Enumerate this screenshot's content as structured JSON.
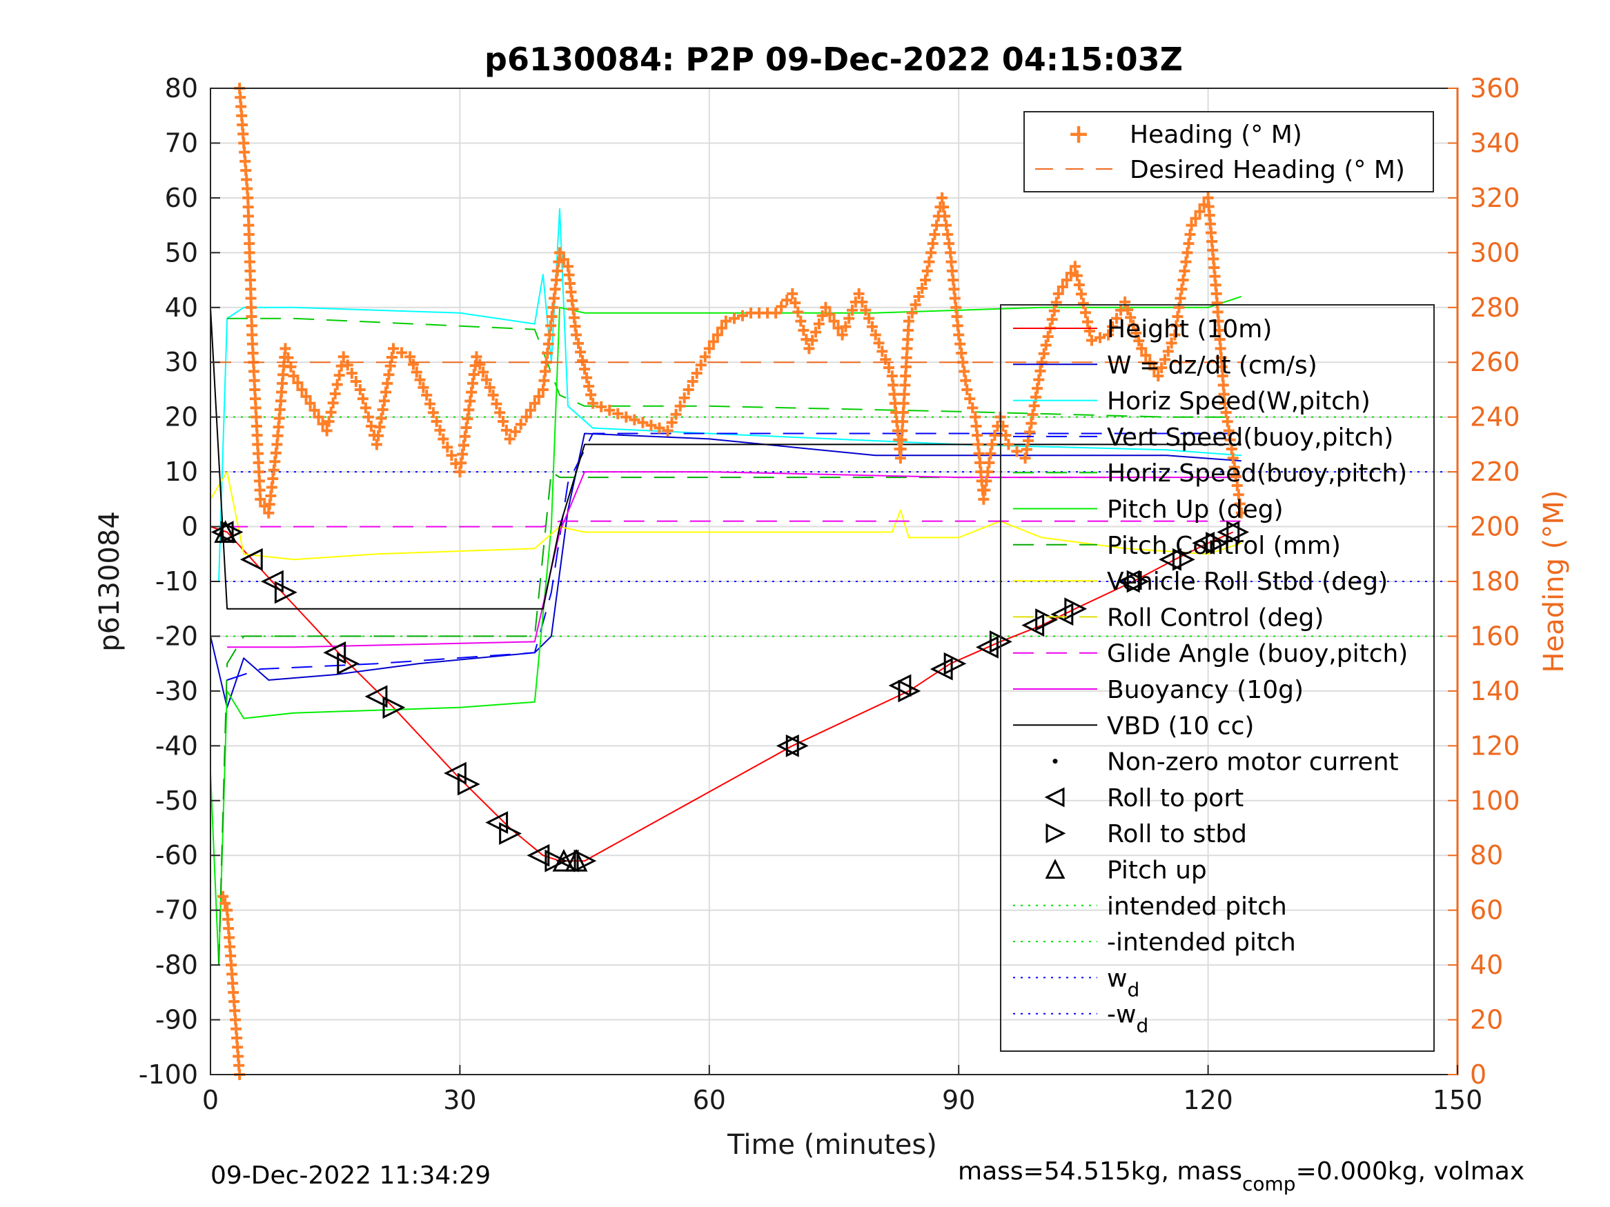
{
  "chart_data": {
    "type": "line",
    "title": "p6130084: P2P 09-Dec-2022 04:15:03Z",
    "xlabel": "Time (minutes)",
    "ylabel": "p6130084",
    "ylabel_right": "Heading (°M)",
    "xlim": [
      0,
      150
    ],
    "ylim": [
      -100,
      80
    ],
    "ylim_right": [
      0,
      360
    ],
    "xticks": [
      "0",
      "30",
      "60",
      "90",
      "120",
      "150"
    ],
    "yticks": [
      "80",
      "70",
      "60",
      "50",
      "40",
      "30",
      "20",
      "10",
      "0",
      "-10",
      "-20",
      "-30",
      "-40",
      "-50",
      "-60",
      "-70",
      "-80",
      "-90",
      "-100"
    ],
    "yticks_right": [
      "360",
      "340",
      "320",
      "300",
      "280",
      "260",
      "240",
      "220",
      "200",
      "180",
      "160",
      "140",
      "120",
      "100",
      "80",
      "60",
      "40",
      "20",
      "0"
    ],
    "grid": true,
    "legend_heading": {
      "placement": "top-right",
      "entries": [
        "Heading (° M)",
        "Desired Heading (° M)"
      ]
    },
    "legend_main": {
      "placement": "right",
      "entries": [
        "Height (10m)",
        "W = dz/dt (cm/s)",
        "Horiz Speed(W,pitch)",
        "Vert Speed(buoy,pitch)",
        "Horiz Speed(buoy,pitch)",
        "Pitch Up (deg)",
        "Pitch Control (mm)",
        "Vehicle Roll Stbd (deg)",
        "Roll Control (deg)",
        "Glide Angle (buoy,pitch)",
        "Buoyancy (10g)",
        "VBD (10 cc)",
        "Non-zero motor current",
        "Roll to port",
        "Roll to stbd",
        "Pitch up",
        "intended pitch",
        "-intended pitch"
      ],
      "wd_label": "w",
      "wd_sub": "d",
      "neg_wd_label": "-w",
      "neg_wd_sub": "d"
    },
    "colors": {
      "height": "#ff0000",
      "w": "#0000cc",
      "horiz_speed": "#00ffff",
      "vert_speed_buoy": "#0000ff",
      "horiz_speed_buoy": "#00cc00",
      "pitch_up": "#00ee00",
      "pitch_control": "#00aa00",
      "roll": "#ffff00",
      "roll_control": "#e0e000",
      "glide": "#ee00ee",
      "buoyancy": "#ee00ee",
      "vbd": "#000000",
      "heading": "#ff7f27",
      "desired_heading": "#ee6a1f",
      "intended_pitch": "#00dd00",
      "wd": "#0000ff",
      "right_axis": "#ee6a1f"
    },
    "series": [
      {
        "name": "Height (10m)",
        "points": [
          [
            0,
            0
          ],
          [
            2,
            -1
          ],
          [
            8,
            -11
          ],
          [
            16,
            -24
          ],
          [
            22,
            -33
          ],
          [
            30,
            -46
          ],
          [
            36,
            -55
          ],
          [
            40,
            -60
          ],
          [
            42,
            -61
          ],
          [
            45,
            -61
          ],
          [
            70,
            -40
          ],
          [
            84,
            -30
          ],
          [
            89,
            -25
          ],
          [
            95,
            -21
          ],
          [
            100,
            -18
          ],
          [
            104,
            -15
          ],
          [
            111,
            -10
          ],
          [
            116,
            -6
          ],
          [
            120,
            -3
          ],
          [
            123,
            -1
          ]
        ]
      },
      {
        "name": "W = dz/dt (cm/s)",
        "points": [
          [
            0,
            -20
          ],
          [
            2,
            -33
          ],
          [
            4,
            -24
          ],
          [
            7,
            -28
          ],
          [
            15,
            -27
          ],
          [
            25,
            -25
          ],
          [
            39,
            -23
          ],
          [
            41,
            -20
          ],
          [
            43,
            3
          ],
          [
            45,
            17
          ],
          [
            60,
            16
          ],
          [
            80,
            13
          ],
          [
            100,
            13
          ],
          [
            115,
            13
          ],
          [
            124,
            12
          ]
        ]
      },
      {
        "name": "Horiz Speed(W,pitch)",
        "points": [
          [
            1,
            -10
          ],
          [
            2,
            38
          ],
          [
            4,
            40
          ],
          [
            10,
            40
          ],
          [
            30,
            39
          ],
          [
            39,
            37
          ],
          [
            40,
            46
          ],
          [
            41,
            30
          ],
          [
            42,
            58
          ],
          [
            43,
            22
          ],
          [
            46,
            18
          ],
          [
            60,
            17
          ],
          [
            90,
            15
          ],
          [
            115,
            14
          ],
          [
            124,
            13
          ]
        ]
      },
      {
        "name": "Vert Speed(buoy,pitch)",
        "points": [
          [
            2,
            -28
          ],
          [
            6,
            -26
          ],
          [
            20,
            -25
          ],
          [
            39,
            -23
          ],
          [
            41,
            -12
          ],
          [
            43,
            8
          ],
          [
            46,
            17
          ],
          [
            60,
            17
          ],
          [
            90,
            17
          ],
          [
            115,
            17
          ],
          [
            124,
            17
          ]
        ]
      },
      {
        "name": "Horiz Speed(buoy,pitch)",
        "points": [
          [
            2,
            38
          ],
          [
            10,
            38
          ],
          [
            39,
            36
          ],
          [
            42,
            24
          ],
          [
            45,
            22
          ],
          [
            60,
            22
          ],
          [
            90,
            21
          ],
          [
            115,
            20
          ],
          [
            124,
            20
          ]
        ]
      },
      {
        "name": "Pitch Up (deg)",
        "points": [
          [
            0,
            -45
          ],
          [
            1,
            -80
          ],
          [
            2,
            -30
          ],
          [
            4,
            -35
          ],
          [
            10,
            -34
          ],
          [
            30,
            -33
          ],
          [
            39,
            -32
          ],
          [
            41,
            0
          ],
          [
            42,
            40
          ],
          [
            45,
            39
          ],
          [
            80,
            39
          ],
          [
            100,
            40
          ],
          [
            120,
            40
          ],
          [
            124,
            42
          ]
        ]
      },
      {
        "name": "Pitch Control (mm)",
        "points": [
          [
            1,
            -80
          ],
          [
            2,
            -25
          ],
          [
            4,
            -20
          ],
          [
            39,
            -20
          ],
          [
            41,
            10
          ],
          [
            42,
            9
          ],
          [
            80,
            9
          ],
          [
            124,
            9
          ]
        ]
      },
      {
        "name": "Vehicle Roll Stbd (deg)",
        "points": [
          [
            0,
            5
          ],
          [
            2,
            10
          ],
          [
            4,
            -5
          ],
          [
            10,
            -6
          ],
          [
            20,
            -5
          ],
          [
            39,
            -4
          ],
          [
            42,
            0
          ],
          [
            45,
            -1
          ],
          [
            60,
            -1
          ],
          [
            82,
            -1
          ],
          [
            83,
            3
          ],
          [
            84,
            -2
          ],
          [
            90,
            -2
          ],
          [
            95,
            1
          ],
          [
            100,
            -2
          ],
          [
            110,
            -4
          ],
          [
            120,
            -5
          ],
          [
            124,
            -3
          ]
        ]
      },
      {
        "name": "Glide Angle (buoy,pitch)",
        "points": [
          [
            2,
            0
          ],
          [
            40,
            0
          ],
          [
            42,
            1
          ],
          [
            60,
            1
          ],
          [
            100,
            1
          ],
          [
            124,
            1
          ]
        ]
      },
      {
        "name": "Buoyancy (10g)",
        "points": [
          [
            2,
            -22
          ],
          [
            10,
            -22
          ],
          [
            39,
            -21
          ],
          [
            42,
            -1
          ],
          [
            45,
            10
          ],
          [
            60,
            10
          ],
          [
            90,
            9
          ],
          [
            124,
            9
          ]
        ]
      },
      {
        "name": "VBD (10 cc)",
        "points": [
          [
            0,
            40
          ],
          [
            2,
            -15
          ],
          [
            40,
            -15
          ],
          [
            42,
            0
          ],
          [
            45,
            15
          ],
          [
            124,
            15
          ]
        ]
      },
      {
        "name": "Heading (° M)",
        "axis": "right",
        "points": [
          [
            1.5,
            65
          ],
          [
            2,
            60
          ],
          [
            2.5,
            40
          ],
          [
            3,
            20
          ],
          [
            3.5,
            0
          ],
          [
            3.5,
            360
          ],
          [
            4.5,
            320
          ],
          [
            5,
            270
          ],
          [
            6,
            210
          ],
          [
            7,
            205
          ],
          [
            8,
            230
          ],
          [
            9,
            265
          ],
          [
            10,
            255
          ],
          [
            12,
            245
          ],
          [
            14,
            235
          ],
          [
            16,
            262
          ],
          [
            18,
            250
          ],
          [
            20,
            230
          ],
          [
            22,
            265
          ],
          [
            24,
            262
          ],
          [
            26,
            248
          ],
          [
            28,
            232
          ],
          [
            30,
            220
          ],
          [
            32,
            262
          ],
          [
            34,
            248
          ],
          [
            36,
            232
          ],
          [
            38,
            240
          ],
          [
            40,
            250
          ],
          [
            42,
            300
          ],
          [
            43,
            295
          ],
          [
            44,
            270
          ],
          [
            46,
            245
          ],
          [
            50,
            240
          ],
          [
            55,
            235
          ],
          [
            60,
            265
          ],
          [
            62,
            275
          ],
          [
            65,
            278
          ],
          [
            68,
            278
          ],
          [
            70,
            285
          ],
          [
            72,
            265
          ],
          [
            74,
            280
          ],
          [
            76,
            270
          ],
          [
            78,
            285
          ],
          [
            80,
            270
          ],
          [
            82,
            255
          ],
          [
            83,
            225
          ],
          [
            84,
            275
          ],
          [
            86,
            290
          ],
          [
            88,
            320
          ],
          [
            89,
            300
          ],
          [
            90,
            270
          ],
          [
            91,
            250
          ],
          [
            92,
            240
          ],
          [
            93,
            210
          ],
          [
            94,
            230
          ],
          [
            95,
            240
          ],
          [
            96,
            230
          ],
          [
            98,
            225
          ],
          [
            100,
            260
          ],
          [
            102,
            285
          ],
          [
            104,
            295
          ],
          [
            106,
            268
          ],
          [
            108,
            270
          ],
          [
            110,
            282
          ],
          [
            112,
            265
          ],
          [
            114,
            255
          ],
          [
            116,
            270
          ],
          [
            118,
            310
          ],
          [
            120,
            320
          ],
          [
            121,
            285
          ],
          [
            122,
            245
          ],
          [
            123,
            225
          ],
          [
            124,
            205
          ]
        ]
      },
      {
        "name": "Desired Heading (° M)",
        "axis": "right",
        "points": [
          [
            0,
            260
          ],
          [
            124,
            260
          ]
        ]
      }
    ],
    "intended_pitch": 20,
    "wd": 10,
    "roll_to_port_markers": [
      [
        1.5,
        -1
      ],
      [
        5,
        -6
      ],
      [
        7.5,
        -10
      ],
      [
        15,
        -23
      ],
      [
        20,
        -31
      ],
      [
        29.5,
        -45
      ],
      [
        34.5,
        -54
      ],
      [
        39.5,
        -60
      ],
      [
        43,
        -61
      ],
      [
        69.5,
        -40
      ],
      [
        83,
        -29
      ],
      [
        88,
        -26
      ],
      [
        93.5,
        -22
      ],
      [
        99,
        -18
      ],
      [
        102.5,
        -16
      ],
      [
        110.5,
        -10
      ],
      [
        115.5,
        -6
      ],
      [
        119.5,
        -3
      ],
      [
        122.5,
        -1
      ]
    ],
    "roll_to_stbd_markers": [
      [
        2.5,
        -1
      ],
      [
        9,
        -12
      ],
      [
        16.5,
        -25
      ],
      [
        22,
        -33
      ],
      [
        31,
        -47
      ],
      [
        36,
        -56
      ],
      [
        41.5,
        -61
      ],
      [
        45,
        -61
      ],
      [
        70.5,
        -40
      ],
      [
        84,
        -30
      ],
      [
        89.5,
        -25
      ],
      [
        95,
        -21
      ],
      [
        100.5,
        -17
      ],
      [
        104,
        -15
      ],
      [
        111.5,
        -10
      ],
      [
        117,
        -6
      ],
      [
        121,
        -3
      ],
      [
        123.5,
        -1
      ]
    ],
    "pitch_up_markers": [
      [
        1.8,
        -1
      ],
      [
        42.5,
        -61
      ],
      [
        44,
        -61
      ]
    ]
  },
  "footer": {
    "timestamp": "09-Dec-2022 11:34:29",
    "mass_a": "mass=54.515kg, mass",
    "mass_sub": "comp",
    "mass_b": "=0.000kg, volmax"
  }
}
